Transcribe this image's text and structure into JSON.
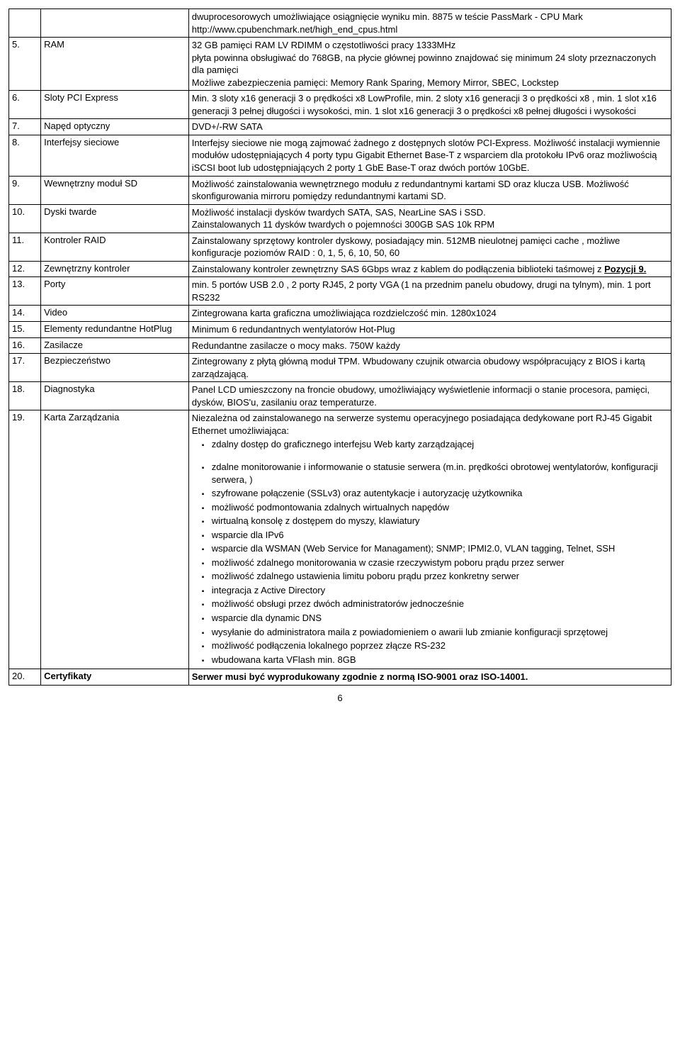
{
  "rows": {
    "r0": {
      "num": "",
      "label": "",
      "desc": "dwuprocesorowych umożliwiające osiągnięcie wyniku min. 8875 w teście PassMark - CPU Mark http://www.cpubenchmark.net/high_end_cpus.html"
    },
    "r5": {
      "num": "5.",
      "label": "RAM",
      "desc": "32 GB pamięci RAM LV RDIMM o częstotliwości pracy 1333MHz\npłyta powinna obsługiwać do 768GB, na płycie głównej powinno znajdować się minimum 24 sloty przeznaczonych dla pamięci\nMożliwe zabezpieczenia pamięci: Memory Rank Sparing, Memory Mirror, SBEC, Lockstep"
    },
    "r6": {
      "num": "6.",
      "label": "Sloty PCI Express",
      "desc": "Min. 3 sloty x16 generacji 3 o prędkości x8 LowProfile, min. 2 sloty x16 generacji 3 o prędkości x8 , min. 1 slot x16 generacji 3 pełnej długości i wysokości, min. 1 slot x16 generacji 3 o prędkości x8 pełnej długości i wysokości"
    },
    "r7": {
      "num": "7.",
      "label": "Napęd optyczny",
      "desc": "DVD+/-RW SATA"
    },
    "r8": {
      "num": "8.",
      "label": "Interfejsy sieciowe",
      "desc": "Interfejsy sieciowe nie mogą zajmować żadnego z dostępnych slotów PCI-Express. Możliwość instalacji wymiennie modułów udostępniających 4 porty typu Gigabit Ethernet Base-T z wsparciem dla protokołu IPv6 oraz możliwością iSCSI boot lub udostępniających 2 porty 1 GbE Base-T oraz dwóch portów 10GbE."
    },
    "r9": {
      "num": "9.",
      "label": "Wewnętrzny moduł SD",
      "desc": "Możliwość zainstalowania wewnętrznego modułu z redundantnymi kartami SD oraz klucza USB. Możliwość skonfigurowania mirroru pomiędzy redundantnymi kartami SD."
    },
    "r10": {
      "num": "10.",
      "label": "Dyski twarde",
      "desc": "Możliwość instalacji dysków twardych SATA, SAS, NearLine SAS i SSD.\nZainstalowanych 11 dysków twardych o pojemności 300GB SAS 10k RPM"
    },
    "r11": {
      "num": "11.",
      "label": "Kontroler RAID",
      "desc": "Zainstalowany sprzętowy kontroler dyskowy, posiadający min. 512MB nieulotnej pamięci cache , możliwe konfiguracje poziomów RAID : 0, 1, 5, 6, 10, 50, 60"
    },
    "r12": {
      "num": "12.",
      "label": "Zewnętrzny kontroler",
      "pre": "Zainstalowany kontroler zewnętrzny SAS 6Gbps wraz z kablem do podłączenia biblioteki taśmowej z ",
      "mid": "Pozycji 9."
    },
    "r13": {
      "num": "13.",
      "label": "Porty",
      "desc": "min. 5 portów USB 2.0 , 2 porty RJ45, 2 porty VGA (1 na przednim panelu obudowy, drugi na tylnym), min. 1 port RS232"
    },
    "r14": {
      "num": "14.",
      "label": "Video",
      "desc": "Zintegrowana karta graficzna  umożliwiająca rozdzielczość min. 1280x1024"
    },
    "r15": {
      "num": "15.",
      "label": "Elementy redundantne HotPlug",
      "desc": "Minimum 6 redundantnych wentylatorów Hot-Plug"
    },
    "r16": {
      "num": "16.",
      "label": "Zasilacze",
      "desc": "Redundantne zasilacze o mocy maks. 750W każdy"
    },
    "r17": {
      "num": "17.",
      "label": "Bezpieczeństwo",
      "desc": "Zintegrowany z płytą główną moduł TPM. Wbudowany czujnik otwarcia obudowy współpracujący z BIOS i kartą zarządzającą."
    },
    "r18": {
      "num": "18.",
      "label": "Diagnostyka",
      "desc": "Panel LCD umieszczony na froncie obudowy, umożliwiający wyświetlenie informacji o stanie procesora, pamięci, dysków, BIOS'u, zasilaniu oraz temperaturze."
    },
    "r19": {
      "num": "19.",
      "label": "Karta Zarządzania",
      "pre": "Niezależna od zainstalowanego na serwerze systemu operacyjnego posiadająca dedykowane port RJ-45 Gigabit Ethernet umożliwiająca:",
      "bullets": [
        "zdalny dostęp do graficznego interfejsu Web karty zarządzającej",
        "zdalne monitorowanie i informowanie o statusie serwera (m.in. prędkości obrotowej wentylatorów, konfiguracji serwera, )",
        "szyfrowane połączenie (SSLv3) oraz autentykacje i autoryzację użytkownika",
        "możliwość podmontowania zdalnych wirtualnych napędów",
        "wirtualną konsolę z dostępem do myszy, klawiatury",
        "wsparcie dla IPv6",
        "wsparcie dla WSMAN (Web Service for Managament); SNMP; IPMI2.0, VLAN tagging, Telnet, SSH",
        "możliwość zdalnego monitorowania w czasie rzeczywistym poboru prądu przez serwer",
        "możliwość zdalnego ustawienia limitu poboru prądu przez konkretny serwer",
        "integracja z Active Directory",
        "możliwość obsługi przez dwóch administratorów jednocześnie",
        "wsparcie dla dynamic DNS",
        "wysyłanie do administratora maila z powiadomieniem o awarii lub zmianie konfiguracji sprzętowej",
        "możliwość podłączenia lokalnego poprzez złącze RS-232",
        "wbudowana karta VFlash min. 8GB"
      ]
    },
    "r20": {
      "num": "20.",
      "label": "Certyfikaty",
      "desc": "Serwer musi być wyprodukowany zgodnie z normą  ISO-9001 oraz ISO-14001."
    }
  },
  "pageNumber": "6",
  "style": {
    "fontFamily": "Arial",
    "fontSize": 13,
    "borderColor": "#000000",
    "background": "#ffffff"
  }
}
